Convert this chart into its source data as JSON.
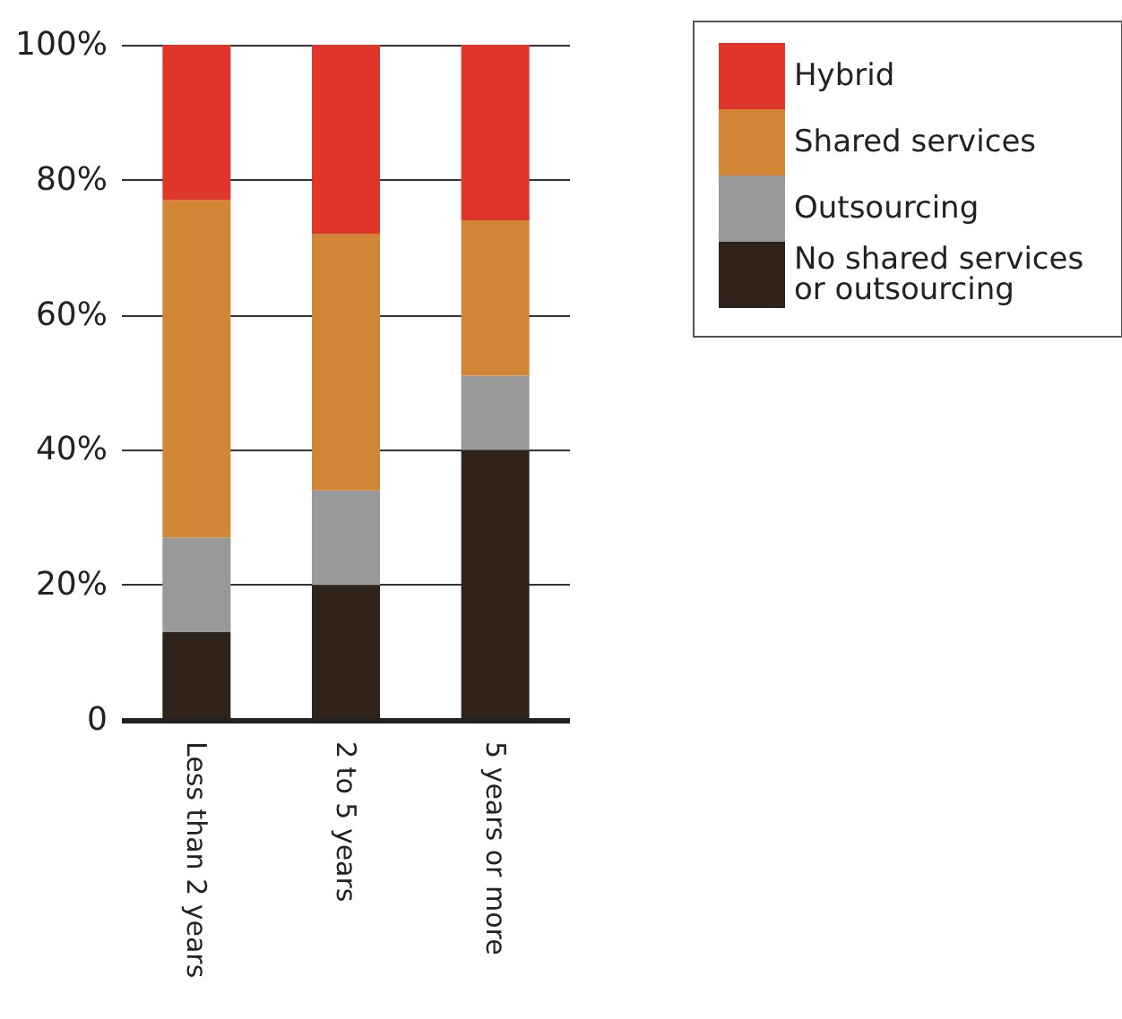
{
  "chart_data": {
    "type": "bar",
    "stacked": true,
    "categories": [
      "Less than 2 years",
      "2 to 5 years",
      "5 years or more"
    ],
    "series": [
      {
        "name": "No shared services or outsourcing",
        "color": "#30231a",
        "values": [
          13,
          20,
          40
        ]
      },
      {
        "name": "Outsourcing",
        "color": "#999999",
        "values": [
          14,
          14,
          11
        ]
      },
      {
        "name": "Shared services",
        "color": "#d08634",
        "values": [
          50,
          38,
          23
        ]
      },
      {
        "name": "Hybrid",
        "color": "#e0352b",
        "values": [
          23,
          28,
          26
        ]
      }
    ],
    "ylim": [
      0,
      100
    ],
    "yticks": [
      0,
      {
        "value": 20,
        "label": "20%"
      },
      {
        "value": 40,
        "label": "40%"
      },
      {
        "value": 60,
        "label": "60%"
      },
      {
        "value": 80,
        "label": "80%"
      },
      {
        "value": 100,
        "label": "100%"
      }
    ],
    "grid": "y",
    "legend": "top right"
  }
}
